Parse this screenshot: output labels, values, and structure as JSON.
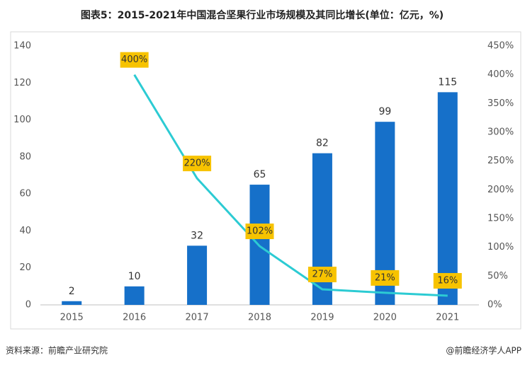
{
  "title": "图表5：2015-2021年中国混合坚果行业市场规模及其同比增长(单位：亿元，%)",
  "source": "资料来源：前瞻产业研究院",
  "credit": "@前瞻经济学人APP",
  "chart_data": {
    "type": "bar",
    "categories": [
      "2015",
      "2016",
      "2017",
      "2018",
      "2019",
      "2020",
      "2021"
    ],
    "series": [
      {
        "type": "bar",
        "color": "#1670c9",
        "values": [
          2,
          10,
          32,
          65,
          82,
          99,
          115
        ]
      },
      {
        "type": "line",
        "axis": "y2",
        "color": "#2ccbd3",
        "values": [
          null,
          400,
          220,
          102,
          27,
          21,
          16
        ],
        "value_labels": [
          null,
          "400%",
          "220%",
          "102%",
          "27%",
          "21%",
          "16%"
        ],
        "label_color": "#f7c300"
      }
    ],
    "ylim": [
      0,
      140
    ],
    "yticks": [
      0,
      20,
      40,
      60,
      80,
      100,
      120,
      140
    ],
    "y2lim": [
      0,
      450
    ],
    "y2ticks": [
      {
        "value": 0,
        "label": "0%"
      },
      {
        "value": 50,
        "label": "50%"
      },
      {
        "value": 100,
        "label": "100%"
      },
      {
        "value": 150,
        "label": "150%"
      },
      {
        "value": 200,
        "label": "200%"
      },
      {
        "value": 250,
        "label": "250%"
      },
      {
        "value": 300,
        "label": "300%"
      },
      {
        "value": 350,
        "label": "350%"
      },
      {
        "value": 400,
        "label": "400%"
      },
      {
        "value": 450,
        "label": "450%"
      }
    ],
    "grid": false
  }
}
